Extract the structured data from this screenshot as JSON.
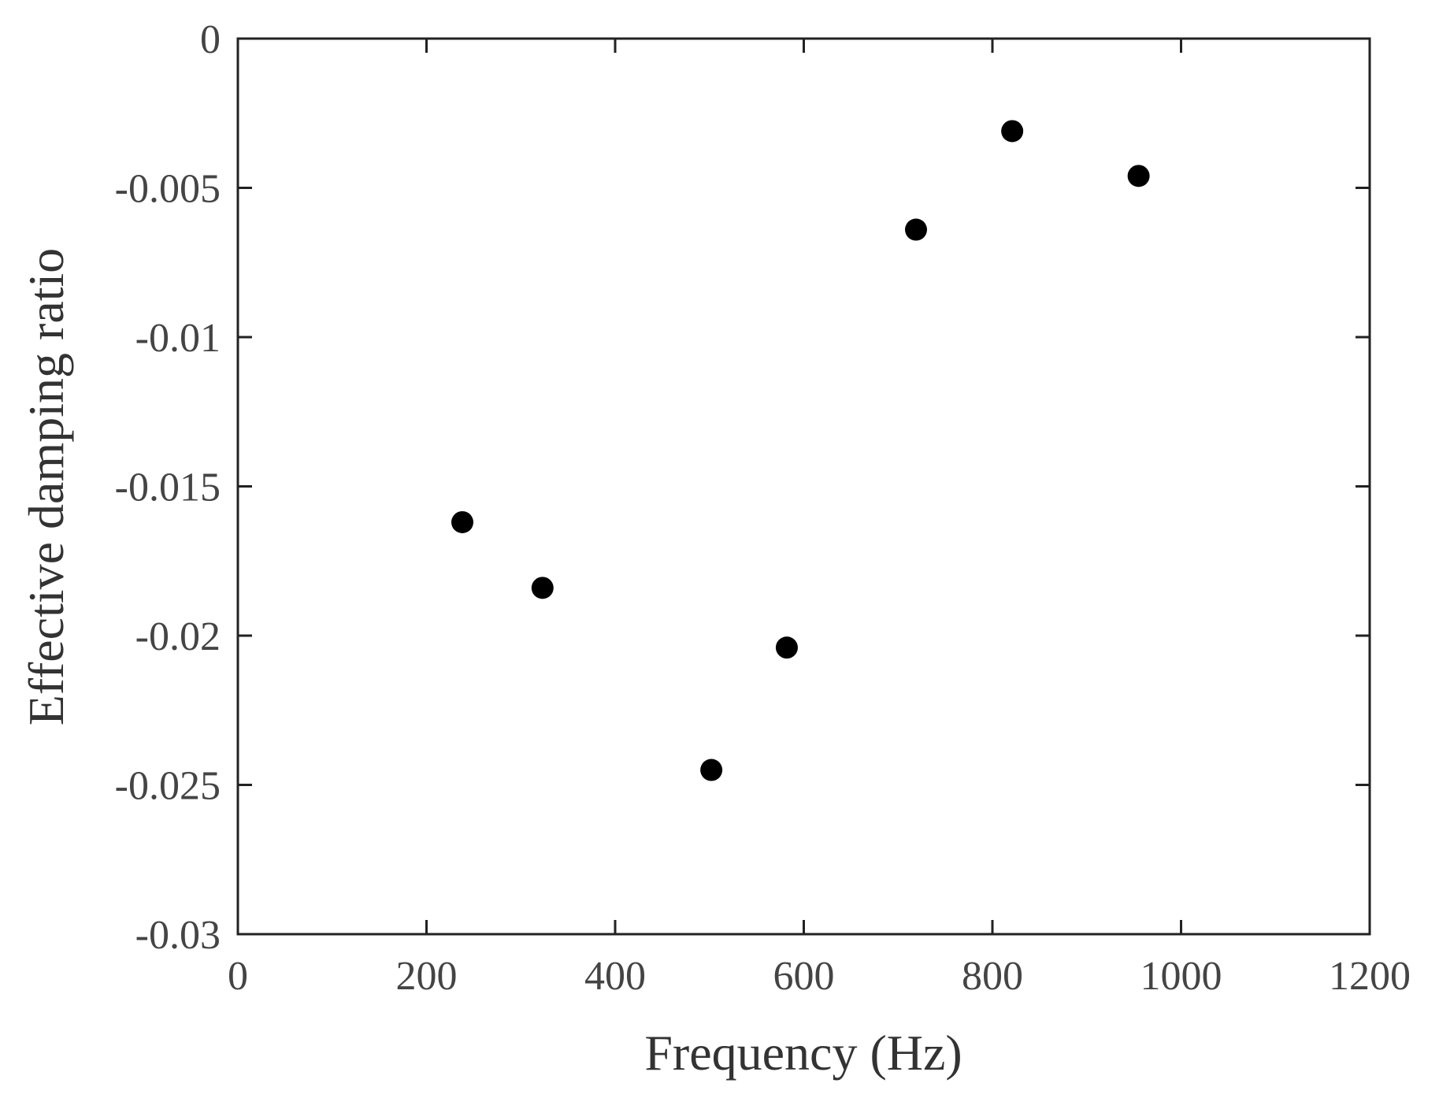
{
  "chart_data": {
    "type": "scatter",
    "title": "",
    "xlabel": "Frequency (Hz)",
    "ylabel": "Effective damping ratio",
    "xlim": [
      0,
      1200
    ],
    "ylim": [
      -0.03,
      0
    ],
    "xticks": [
      0,
      200,
      400,
      600,
      800,
      1000,
      1200
    ],
    "yticks": [
      0,
      -0.005,
      -0.01,
      -0.015,
      -0.02,
      -0.025,
      -0.03
    ],
    "xtick_labels": [
      "0",
      "200",
      "400",
      "600",
      "800",
      "1000",
      "1200"
    ],
    "ytick_labels": [
      "0",
      "-0.005",
      "-0.01",
      "-0.015",
      "-0.02",
      "-0.025",
      "-0.03"
    ],
    "grid": false,
    "marker_color": "#000000",
    "series": [
      {
        "x": [
          238,
          323,
          502,
          582,
          719,
          821,
          955
        ],
        "y": [
          -0.0162,
          -0.0184,
          -0.0245,
          -0.0204,
          -0.0064,
          -0.0031,
          -0.0046
        ]
      }
    ]
  }
}
